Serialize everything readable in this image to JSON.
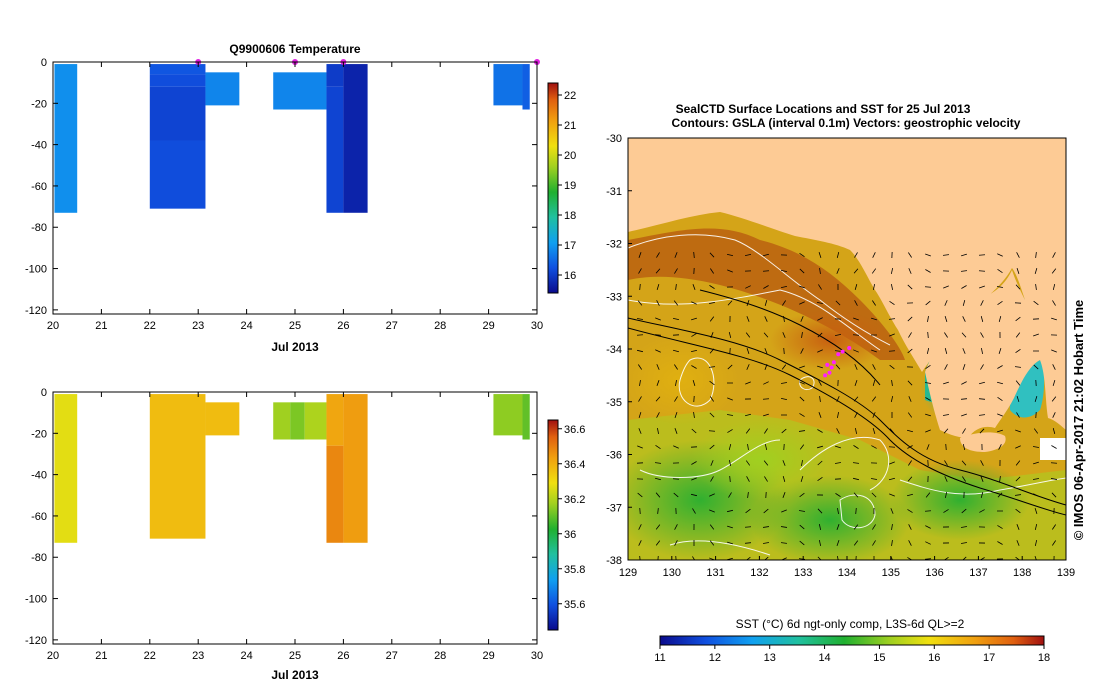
{
  "chart_data": [
    {
      "type": "heatmap",
      "title": "Q9900606  Temperature",
      "xlabel": "Jul 2013",
      "ylabel": "",
      "xlim": [
        20,
        30
      ],
      "ylim": [
        -122,
        0
      ],
      "x_ticks": [
        "20",
        "21",
        "22",
        "23",
        "24",
        "25",
        "26",
        "27",
        "28",
        "29",
        "30"
      ],
      "y_ticks": [
        "0",
        "-20",
        "-40",
        "-60",
        "-80",
        "-100",
        "-120"
      ],
      "colorbar": {
        "min": 15.4,
        "max": 22.4,
        "ticks": [
          "22",
          "21",
          "20",
          "19",
          "18",
          "17",
          "16"
        ]
      },
      "profile_markers_x": [
        23.0,
        25.0,
        26.0,
        30.0
      ],
      "profiles": [
        {
          "x0": 20.03,
          "x1": 20.5,
          "y0": -1,
          "y1": -73,
          "value": 16.9
        },
        {
          "x0": 22.0,
          "x1": 23.15,
          "y0": -1,
          "y1": -6,
          "value": 16.3
        },
        {
          "x0": 22.0,
          "x1": 23.15,
          "y0": -6,
          "y1": -12,
          "value": 16.2
        },
        {
          "x0": 22.0,
          "x1": 23.15,
          "y0": -12,
          "y1": -38,
          "value": 16.1
        },
        {
          "x0": 22.0,
          "x1": 23.15,
          "y0": -38,
          "y1": -71,
          "value": 16.2
        },
        {
          "x0": 23.15,
          "x1": 23.85,
          "y0": -5,
          "y1": -21,
          "value": 16.8
        },
        {
          "x0": 24.55,
          "x1": 25.65,
          "y0": -5,
          "y1": -23,
          "value": 16.8
        },
        {
          "x0": 25.65,
          "x1": 26.0,
          "y0": -1,
          "y1": -12,
          "value": 16.0
        },
        {
          "x0": 25.65,
          "x1": 26.0,
          "y0": -12,
          "y1": -73,
          "value": 16.1
        },
        {
          "x0": 26.0,
          "x1": 26.5,
          "y0": -1,
          "y1": -73,
          "value": 15.7
        },
        {
          "x0": 29.1,
          "x1": 29.7,
          "y0": -1,
          "y1": -21,
          "value": 16.6
        },
        {
          "x0": 29.7,
          "x1": 29.85,
          "y0": -1,
          "y1": -23,
          "value": 16.4
        }
      ]
    },
    {
      "type": "heatmap",
      "title": "",
      "xlabel": "Jul 2013",
      "ylabel": "",
      "xlim": [
        20,
        30
      ],
      "ylim": [
        -122,
        0
      ],
      "x_ticks": [
        "20",
        "21",
        "22",
        "23",
        "24",
        "25",
        "26",
        "27",
        "28",
        "29",
        "30"
      ],
      "y_ticks": [
        "0",
        "-20",
        "-40",
        "-60",
        "-80",
        "-100",
        "-120"
      ],
      "colorbar": {
        "min": 35.45,
        "max": 36.65,
        "ticks": [
          "36.6",
          "36.4",
          "36.2",
          "36",
          "35.8",
          "35.6"
        ]
      },
      "profiles": [
        {
          "x0": 20.03,
          "x1": 20.5,
          "y0": -1,
          "y1": -73,
          "value": 36.27
        },
        {
          "x0": 22.0,
          "x1": 23.15,
          "y0": -1,
          "y1": -71,
          "value": 36.37
        },
        {
          "x0": 23.15,
          "x1": 23.85,
          "y0": -5,
          "y1": -21,
          "value": 36.37
        },
        {
          "x0": 24.55,
          "x1": 24.9,
          "y0": -5,
          "y1": -23,
          "value": 36.17
        },
        {
          "x0": 24.9,
          "x1": 25.2,
          "y0": -5,
          "y1": -23,
          "value": 36.13
        },
        {
          "x0": 25.2,
          "x1": 25.65,
          "y0": -5,
          "y1": -23,
          "value": 36.19
        },
        {
          "x0": 25.65,
          "x1": 26.0,
          "y0": -1,
          "y1": -26,
          "value": 36.42
        },
        {
          "x0": 25.65,
          "x1": 26.0,
          "y0": -26,
          "y1": -73,
          "value": 36.48
        },
        {
          "x0": 26.0,
          "x1": 26.5,
          "y0": -1,
          "y1": -73,
          "value": 36.44
        },
        {
          "x0": 29.1,
          "x1": 29.7,
          "y0": -1,
          "y1": -21,
          "value": 36.15
        },
        {
          "x0": 29.7,
          "x1": 29.85,
          "y0": -1,
          "y1": -23,
          "value": 36.1
        }
      ]
    },
    {
      "type": "map",
      "title": "SealCTD Surface Locations and SST for 25 Jul 2013",
      "subtitle": "Contours: GSLA (interval 0.1m) Vectors: geostrophic velocity",
      "xlim": [
        129,
        139
      ],
      "ylim": [
        -38,
        -30
      ],
      "x_ticks": [
        "129",
        "130",
        "131",
        "132",
        "133",
        "134",
        "135",
        "136",
        "137",
        "138",
        "139"
      ],
      "y_ticks": [
        "-30",
        "-31",
        "-32",
        "-33",
        "-34",
        "-35",
        "-36",
        "-37",
        "-38"
      ],
      "colorbar": {
        "label": "SST (°C) 6d ngt-only comp, L3S-6d QL>=2",
        "min": 11,
        "max": 18,
        "ticks": [
          "11",
          "12",
          "13",
          "14",
          "15",
          "16",
          "17",
          "18"
        ]
      },
      "credit": "© IMOS 06-Apr-2017 21:02 Hobart Time",
      "seal_locations": [
        [
          133.55,
          -34.3
        ],
        [
          133.65,
          -34.35
        ],
        [
          133.7,
          -34.25
        ],
        [
          133.8,
          -34.1
        ],
        [
          133.9,
          -34.05
        ],
        [
          134.05,
          -33.98
        ],
        [
          133.5,
          -34.5
        ],
        [
          133.6,
          -34.45
        ]
      ]
    }
  ]
}
